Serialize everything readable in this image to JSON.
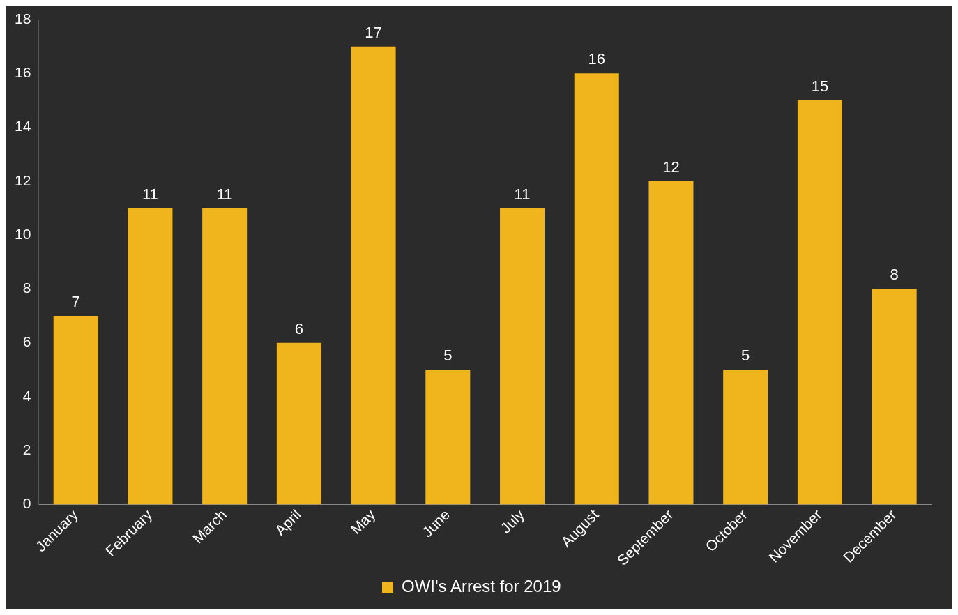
{
  "chart_data": {
    "type": "bar",
    "categories": [
      "January",
      "February",
      "March",
      "April",
      "May",
      "June",
      "July",
      "August",
      "September",
      "October",
      "November",
      "December"
    ],
    "series": [
      {
        "name": "OWI's Arrest for 2019",
        "color": "#f0b41c",
        "values": [
          7,
          11,
          11,
          6,
          17,
          5,
          11,
          16,
          12,
          5,
          15,
          8
        ]
      }
    ],
    "ylim": [
      0,
      18
    ],
    "yticks": [
      0,
      2,
      4,
      6,
      8,
      10,
      12,
      14,
      16,
      18
    ],
    "grid": false,
    "legend": "bottom",
    "data_labels": true
  }
}
